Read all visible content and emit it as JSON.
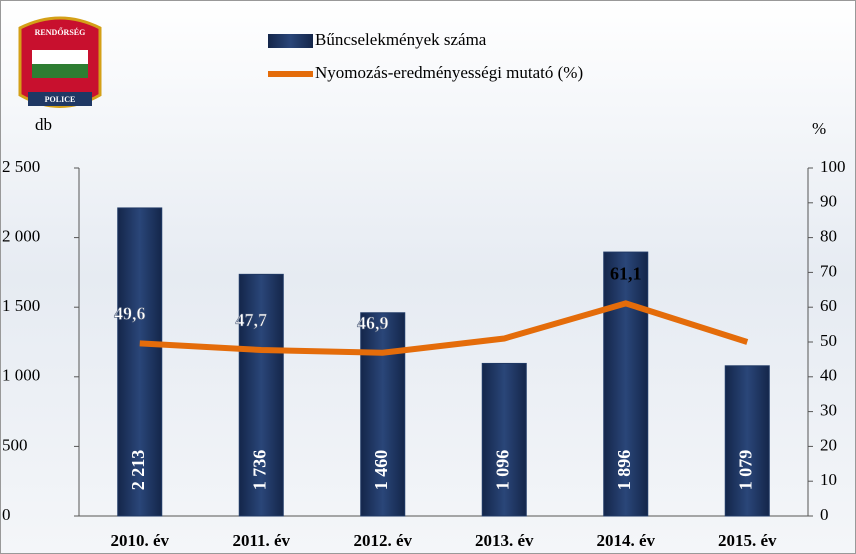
{
  "logo": {
    "top": "RENDŐRSÉG",
    "bottom": "POLICE"
  },
  "chart_data": {
    "type": "bar-line",
    "categories": [
      "2010. év",
      "2011. év",
      "2012. év",
      "2013. év",
      "2014. év",
      "2015. év"
    ],
    "y_label": "db",
    "y2_label": "%",
    "series": [
      {
        "name": "Bűncselekmények száma",
        "type": "bar",
        "color": "#1f3864",
        "values": [
          2213,
          1736,
          1460,
          1096,
          1896,
          1079
        ],
        "value_labels": [
          "2 213",
          "1 736",
          "1 460",
          "1 096",
          "1 896",
          "1 079"
        ]
      },
      {
        "name": "Nyomozás-eredményességi mutató (%)",
        "type": "line",
        "axis": "y2",
        "color": "#e46c0a",
        "values": [
          49.6,
          47.7,
          46.9,
          51,
          61.1,
          50
        ],
        "value_labels": [
          "49,6",
          "47,7",
          "46,9",
          null,
          "61,1",
          null
        ]
      }
    ],
    "ylim": [
      0,
      2500
    ],
    "yticks": [
      0,
      500,
      {
        "value": 1000,
        "label": "1 000"
      },
      {
        "value": 1500,
        "label": "1 500"
      },
      {
        "value": 2000,
        "label": "2 000"
      },
      {
        "value": 2500,
        "label": "2 500"
      }
    ],
    "y2lim": [
      0,
      100
    ],
    "y2ticks": [
      0,
      10,
      20,
      30,
      40,
      50,
      60,
      70,
      80,
      90,
      100
    ]
  }
}
